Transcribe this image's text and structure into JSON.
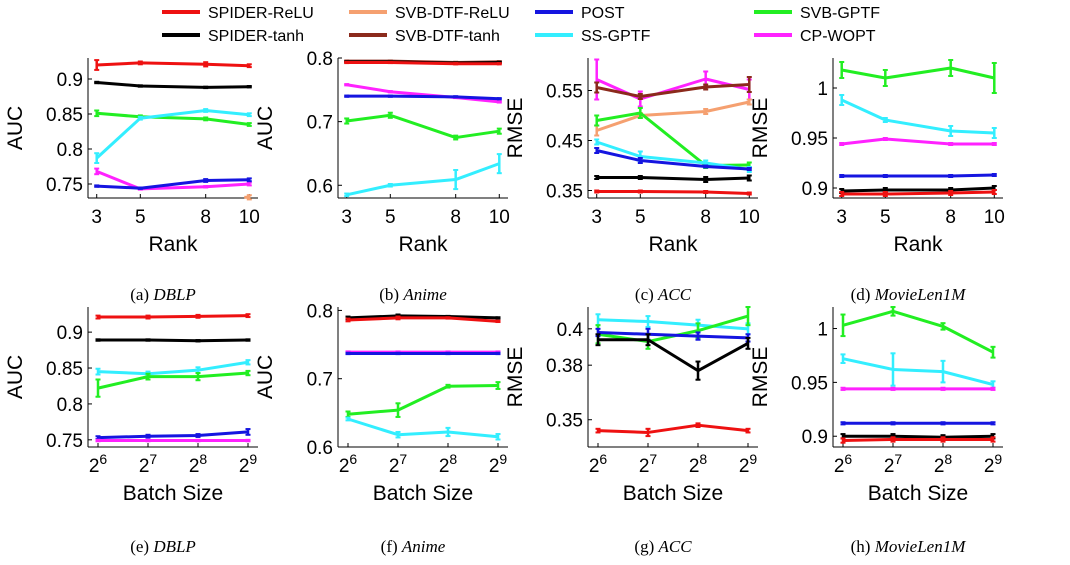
{
  "colors": {
    "SPIDER-ReLU": "#ee1111",
    "SPIDER-tanh": "#000000",
    "SVB-DTF-ReLU": "#f5a070",
    "SVB-DTF-tanh": "#8b2a1c",
    "POST": "#1515e0",
    "SS-GPTF": "#33eeff",
    "SVB-GPTF": "#22ee22",
    "CP-WOPT": "#ff22ff"
  },
  "legend": {
    "entries": [
      {
        "label": "SPIDER-ReLU",
        "color": "#ee1111"
      },
      {
        "label": "SVB-DTF-ReLU",
        "color": "#f5a070"
      },
      {
        "label": "POST",
        "color": "#1515e0"
      },
      {
        "label": "SVB-GPTF",
        "color": "#22ee22"
      },
      {
        "label": "SPIDER-tanh",
        "color": "#000000"
      },
      {
        "label": "SVB-DTF-tanh",
        "color": "#8b2a1c"
      },
      {
        "label": "SS-GPTF",
        "color": "#33eeff"
      },
      {
        "label": "CP-WOPT",
        "color": "#ff22ff"
      }
    ]
  },
  "chart_data": [
    {
      "type": "line",
      "caption_prefix": "(a)",
      "caption_name": "DBLP",
      "xlabel": "Rank",
      "ylabel": "AUC",
      "x": [
        3,
        5,
        8,
        10
      ],
      "xticks": [
        "3",
        "5",
        "8",
        "10"
      ],
      "xlim": [
        2.6,
        10.4
      ],
      "ylim": [
        0.73,
        0.93
      ],
      "yticks": [
        0.75,
        0.8,
        0.85,
        0.9
      ],
      "ytick_labels": [
        "0.75",
        "0.8",
        "0.85",
        "0.9"
      ],
      "series": [
        {
          "name": "SPIDER-ReLU",
          "values": [
            0.92,
            0.923,
            0.921,
            0.919
          ],
          "err": [
            0.007,
            0.002,
            0.003,
            0.002
          ]
        },
        {
          "name": "SPIDER-tanh",
          "values": [
            0.895,
            0.89,
            0.888,
            0.889
          ],
          "err": [
            0.001,
            0.001,
            0.001,
            0.001
          ]
        },
        {
          "name": "SVB-GPTF",
          "values": [
            0.851,
            0.846,
            0.843,
            0.835
          ],
          "err": [
            0.004,
            0.002,
            0.002,
            0.002
          ]
        },
        {
          "name": "SS-GPTF",
          "values": [
            0.787,
            0.844,
            0.855,
            0.849
          ],
          "err": [
            0.007,
            0.002,
            0.002,
            0.002
          ]
        },
        {
          "name": "CP-WOPT",
          "values": [
            0.768,
            0.743,
            0.746,
            0.75
          ],
          "err": [
            0.004,
            0.001,
            0.001,
            0.002
          ]
        },
        {
          "name": "POST",
          "values": [
            0.747,
            0.744,
            0.755,
            0.756
          ],
          "err": [
            0.001,
            0.001,
            0.002,
            0.002
          ]
        },
        {
          "name": "SVB-DTF-ReLU",
          "values": [
            null,
            null,
            null,
            0.731
          ],
          "err": [
            0,
            0,
            0,
            0.003
          ]
        }
      ]
    },
    {
      "type": "line",
      "caption_prefix": "(b)",
      "caption_name": "Anime",
      "xlabel": "Rank",
      "ylabel": "AUC",
      "x": [
        3,
        5,
        8,
        10
      ],
      "xticks": [
        "3",
        "5",
        "8",
        "10"
      ],
      "xlim": [
        2.6,
        10.4
      ],
      "ylim": [
        0.58,
        0.8
      ],
      "yticks": [
        0.6,
        0.7,
        0.8
      ],
      "ytick_labels": [
        "0.6",
        "0.7",
        "0.8"
      ],
      "series": [
        {
          "name": "SVB-DTF-tanh",
          "values": [
            0.795,
            0.795,
            0.793,
            0.794
          ],
          "err": [
            0.001,
            0.001,
            0.001,
            0.001
          ]
        },
        {
          "name": "SPIDER-tanh",
          "values": [
            0.794,
            0.794,
            0.792,
            0.793
          ],
          "err": [
            0.001,
            0.001,
            0.001,
            0.001
          ]
        },
        {
          "name": "SPIDER-ReLU",
          "values": [
            0.793,
            0.793,
            0.791,
            0.791
          ],
          "err": [
            0.001,
            0.001,
            0.001,
            0.001
          ]
        },
        {
          "name": "CP-WOPT",
          "values": [
            0.758,
            0.747,
            0.738,
            0.731
          ],
          "err": [
            0.001,
            0.001,
            0.001,
            0.001
          ]
        },
        {
          "name": "POST",
          "values": [
            0.74,
            0.74,
            0.739,
            0.736
          ],
          "err": [
            0.001,
            0.001,
            0.001,
            0.001
          ]
        },
        {
          "name": "SVB-GPTF",
          "values": [
            0.701,
            0.71,
            0.675,
            0.685
          ],
          "err": [
            0.004,
            0.004,
            0.003,
            0.004
          ]
        },
        {
          "name": "SS-GPTF",
          "values": [
            0.585,
            0.6,
            0.609,
            0.634
          ],
          "err": [
            0.002,
            0.002,
            0.015,
            0.015
          ]
        }
      ]
    },
    {
      "type": "line",
      "caption_prefix": "(c)",
      "caption_name": "ACC",
      "xlabel": "Rank",
      "ylabel": "RMSE",
      "x": [
        3,
        5,
        8,
        10
      ],
      "xticks": [
        "3",
        "5",
        "8",
        "10"
      ],
      "xlim": [
        2.6,
        10.4
      ],
      "ylim": [
        0.335,
        0.615
      ],
      "yticks": [
        0.35,
        0.45,
        0.55
      ],
      "ytick_labels": [
        "0.35",
        "0.45",
        "0.55"
      ],
      "series": [
        {
          "name": "CP-WOPT",
          "values": [
            0.572,
            0.533,
            0.573,
            0.552
          ],
          "err": [
            0.04,
            0.015,
            0.015,
            0.02
          ]
        },
        {
          "name": "SVB-DTF-tanh",
          "values": [
            0.556,
            0.538,
            0.557,
            0.562
          ],
          "err": [
            0.01,
            0.005,
            0.005,
            0.015
          ]
        },
        {
          "name": "SVB-DTF-ReLU",
          "values": [
            0.47,
            0.5,
            0.508,
            0.527
          ],
          "err": [
            0.01,
            0.005,
            0.005,
            0.005
          ]
        },
        {
          "name": "SVB-GPTF",
          "values": [
            0.49,
            0.505,
            0.4,
            0.401
          ],
          "err": [
            0.01,
            0.01,
            0.005,
            0.005
          ]
        },
        {
          "name": "SS-GPTF",
          "values": [
            0.447,
            0.418,
            0.405,
            0.392
          ],
          "err": [
            0.005,
            0.01,
            0.005,
            0.005
          ]
        },
        {
          "name": "POST",
          "values": [
            0.43,
            0.41,
            0.398,
            0.393
          ],
          "err": [
            0.005,
            0.005,
            0.002,
            0.002
          ]
        },
        {
          "name": "SPIDER-tanh",
          "values": [
            0.376,
            0.376,
            0.372,
            0.375
          ],
          "err": [
            0.003,
            0.003,
            0.005,
            0.005
          ]
        },
        {
          "name": "SPIDER-ReLU",
          "values": [
            0.348,
            0.348,
            0.347,
            0.344
          ],
          "err": [
            0.002,
            0.002,
            0.002,
            0.002
          ]
        }
      ]
    },
    {
      "type": "line",
      "caption_prefix": "(d)",
      "caption_name": "MovieLen1M",
      "xlabel": "Rank",
      "ylabel": "RMSE",
      "x": [
        3,
        5,
        8,
        10
      ],
      "xticks": [
        "3",
        "5",
        "8",
        "10"
      ],
      "xlim": [
        2.6,
        10.4
      ],
      "ylim": [
        0.89,
        1.03
      ],
      "yticks": [
        0.9,
        0.95,
        1.0
      ],
      "ytick_labels": [
        "0.9",
        "0.95",
        "1"
      ],
      "series": [
        {
          "name": "SVB-GPTF",
          "values": [
            1.018,
            1.01,
            1.02,
            1.01
          ],
          "err": [
            0.008,
            0.008,
            0.008,
            0.015
          ]
        },
        {
          "name": "SS-GPTF",
          "values": [
            0.988,
            0.968,
            0.957,
            0.955
          ],
          "err": [
            0.005,
            0.002,
            0.005,
            0.005
          ]
        },
        {
          "name": "CP-WOPT",
          "values": [
            0.944,
            0.949,
            0.944,
            0.944
          ],
          "err": [
            0.001,
            0.001,
            0.001,
            0.001
          ]
        },
        {
          "name": "POST",
          "values": [
            0.912,
            0.912,
            0.912,
            0.913
          ],
          "err": [
            0.001,
            0.001,
            0.001,
            0.001
          ]
        },
        {
          "name": "SPIDER-tanh",
          "values": [
            0.897,
            0.898,
            0.898,
            0.9
          ],
          "err": [
            0.002,
            0.002,
            0.002,
            0.002
          ]
        },
        {
          "name": "SPIDER-ReLU",
          "values": [
            0.894,
            0.894,
            0.895,
            0.896
          ],
          "err": [
            0.002,
            0.002,
            0.002,
            0.002
          ]
        }
      ]
    },
    {
      "type": "line",
      "caption_prefix": "(e)",
      "caption_name": "DBLP",
      "xlabel": "Batch Size",
      "ylabel": "AUC",
      "xscale": "log2",
      "x": [
        64,
        128,
        256,
        512
      ],
      "xticks": [
        "2^6",
        "2^7",
        "2^8",
        "2^9"
      ],
      "xlim": [
        5.8,
        9.2
      ],
      "ylim": [
        0.74,
        0.935
      ],
      "yticks": [
        0.75,
        0.8,
        0.85,
        0.9
      ],
      "ytick_labels": [
        "0.75",
        "0.8",
        "0.85",
        "0.9"
      ],
      "series": [
        {
          "name": "SPIDER-ReLU",
          "values": [
            0.921,
            0.921,
            0.922,
            0.923
          ],
          "err": [
            0.002,
            0.002,
            0.002,
            0.002
          ]
        },
        {
          "name": "SPIDER-tanh",
          "values": [
            0.889,
            0.889,
            0.888,
            0.889
          ],
          "err": [
            0.001,
            0.001,
            0.001,
            0.001
          ]
        },
        {
          "name": "SS-GPTF",
          "values": [
            0.845,
            0.842,
            0.847,
            0.858
          ],
          "err": [
            0.004,
            0.003,
            0.004,
            0.003
          ]
        },
        {
          "name": "SVB-GPTF",
          "values": [
            0.822,
            0.838,
            0.838,
            0.843
          ],
          "err": [
            0.012,
            0.004,
            0.005,
            0.003
          ]
        },
        {
          "name": "POST",
          "values": [
            0.753,
            0.755,
            0.756,
            0.761
          ],
          "err": [
            0.002,
            0.002,
            0.002,
            0.004
          ]
        },
        {
          "name": "CP-WOPT",
          "values": [
            0.749,
            0.749,
            0.749,
            0.749
          ],
          "err": [
            0.001,
            0.001,
            0.001,
            0.001
          ]
        }
      ]
    },
    {
      "type": "line",
      "caption_prefix": "(f)",
      "caption_name": "Anime",
      "xlabel": "Batch Size",
      "ylabel": "AUC",
      "xscale": "log2",
      "x": [
        64,
        128,
        256,
        512
      ],
      "xticks": [
        "2^6",
        "2^7",
        "2^8",
        "2^9"
      ],
      "xlim": [
        5.8,
        9.2
      ],
      "ylim": [
        0.6,
        0.805
      ],
      "yticks": [
        0.6,
        0.7,
        0.8
      ],
      "ytick_labels": [
        "0.6",
        "0.7",
        "0.8"
      ],
      "series": [
        {
          "name": "SPIDER-tanh",
          "values": [
            0.789,
            0.792,
            0.791,
            0.789
          ],
          "err": [
            0.002,
            0.002,
            0.001,
            0.001
          ]
        },
        {
          "name": "SPIDER-ReLU",
          "values": [
            0.786,
            0.789,
            0.789,
            0.784
          ],
          "err": [
            0.002,
            0.002,
            0.001,
            0.001
          ]
        },
        {
          "name": "CP-WOPT",
          "values": [
            0.739,
            0.739,
            0.739,
            0.739
          ],
          "err": [
            0.001,
            0.001,
            0.001,
            0.001
          ]
        },
        {
          "name": "POST",
          "values": [
            0.737,
            0.737,
            0.737,
            0.737
          ],
          "err": [
            0.001,
            0.001,
            0.001,
            0.001
          ]
        },
        {
          "name": "SVB-GPTF",
          "values": [
            0.648,
            0.654,
            0.689,
            0.69
          ],
          "err": [
            0.004,
            0.01,
            0.002,
            0.005
          ]
        },
        {
          "name": "SS-GPTF",
          "values": [
            0.641,
            0.618,
            0.622,
            0.615
          ],
          "err": [
            0.002,
            0.004,
            0.006,
            0.004
          ]
        }
      ]
    },
    {
      "type": "line",
      "caption_prefix": "(g)",
      "caption_name": "ACC",
      "xlabel": "Batch Size",
      "ylabel": "RMSE",
      "xscale": "log2",
      "x": [
        64,
        128,
        256,
        512
      ],
      "xticks": [
        "2^6",
        "2^7",
        "2^8",
        "2^9"
      ],
      "xlim": [
        5.8,
        9.2
      ],
      "ylim": [
        0.335,
        0.412
      ],
      "yticks": [
        0.35,
        0.38,
        0.4
      ],
      "ytick_labels": [
        "0.35",
        "0.38",
        "0.4"
      ],
      "series": [
        {
          "name": "SS-GPTF",
          "values": [
            0.405,
            0.404,
            0.402,
            0.4
          ],
          "err": [
            0.003,
            0.003,
            0.003,
            0.003
          ]
        },
        {
          "name": "SVB-GPTF",
          "values": [
            0.397,
            0.393,
            0.399,
            0.407
          ],
          "err": [
            0.005,
            0.004,
            0.004,
            0.005
          ]
        },
        {
          "name": "POST",
          "values": [
            0.398,
            0.397,
            0.396,
            0.395
          ],
          "err": [
            0.002,
            0.003,
            0.002,
            0.002
          ]
        },
        {
          "name": "SPIDER-tanh",
          "values": [
            0.394,
            0.394,
            0.377,
            0.392
          ],
          "err": [
            0.003,
            0.003,
            0.005,
            0.003
          ]
        },
        {
          "name": "SPIDER-ReLU",
          "values": [
            0.344,
            0.343,
            0.347,
            0.344
          ],
          "err": [
            0.001,
            0.002,
            0.001,
            0.001
          ]
        }
      ]
    },
    {
      "type": "line",
      "caption_prefix": "(h)",
      "caption_name": "MovieLen1M",
      "xlabel": "Batch Size",
      "ylabel": "RMSE",
      "xscale": "log2",
      "x": [
        64,
        128,
        256,
        512
      ],
      "xticks": [
        "2^6",
        "2^7",
        "2^8",
        "2^9"
      ],
      "xlim": [
        5.8,
        9.2
      ],
      "ylim": [
        0.89,
        1.02
      ],
      "yticks": [
        0.9,
        0.95,
        1.0
      ],
      "ytick_labels": [
        "0.9",
        "0.95",
        "1"
      ],
      "series": [
        {
          "name": "SVB-GPTF",
          "values": [
            1.003,
            1.016,
            1.002,
            0.978
          ],
          "err": [
            0.01,
            0.004,
            0.003,
            0.005
          ]
        },
        {
          "name": "SS-GPTF",
          "values": [
            0.972,
            0.962,
            0.96,
            0.948
          ],
          "err": [
            0.004,
            0.015,
            0.01,
            0.003
          ]
        },
        {
          "name": "CP-WOPT",
          "values": [
            0.944,
            0.944,
            0.944,
            0.944
          ],
          "err": [
            0.001,
            0.001,
            0.001,
            0.001
          ]
        },
        {
          "name": "POST",
          "values": [
            0.912,
            0.912,
            0.912,
            0.912
          ],
          "err": [
            0.001,
            0.001,
            0.001,
            0.001
          ]
        },
        {
          "name": "SPIDER-tanh",
          "values": [
            0.9,
            0.9,
            0.899,
            0.9
          ],
          "err": [
            0.002,
            0.002,
            0.002,
            0.002
          ]
        },
        {
          "name": "SPIDER-ReLU",
          "values": [
            0.896,
            0.897,
            0.897,
            0.897
          ],
          "err": [
            0.002,
            0.002,
            0.002,
            0.002
          ]
        }
      ]
    }
  ]
}
